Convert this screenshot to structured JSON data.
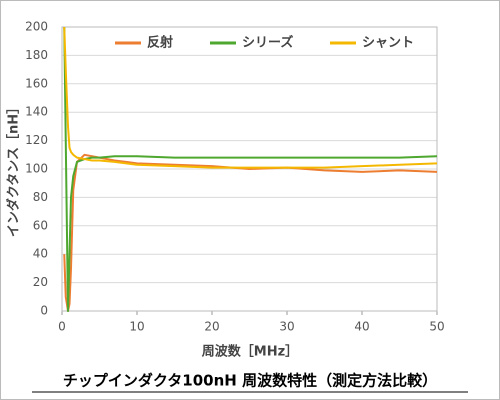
{
  "chart_data": {
    "type": "line",
    "title": "チップインダクタ100nH 周波数特性（測定方法比較）",
    "x_label": "周波数［MHz］",
    "y_label": "インダクタンス［nH］",
    "x": [
      0.3,
      0.5,
      0.8,
      1,
      1.2,
      1.5,
      2,
      3,
      4,
      5,
      7,
      10,
      15,
      20,
      25,
      30,
      35,
      40,
      45,
      50
    ],
    "series": [
      {
        "name": "反射",
        "color": "#ed7d31",
        "values": [
          40,
          10,
          0,
          5,
          30,
          85,
          105,
          110,
          109,
          108,
          106,
          104,
          103,
          102,
          100,
          101,
          99,
          98,
          99,
          98
        ]
      },
      {
        "name": "シリーズ",
        "color": "#4ea72e",
        "values": [
          200,
          120,
          0,
          40,
          80,
          95,
          105,
          107,
          108,
          108,
          109,
          109,
          108,
          108,
          108,
          108,
          108,
          108,
          108,
          109
        ]
      },
      {
        "name": "シャント",
        "color": "#f5b800",
        "values": [
          200,
          170,
          130,
          115,
          112,
          110,
          108,
          107,
          106,
          106,
          105,
          103,
          102,
          101,
          101,
          101,
          101,
          102,
          103,
          104
        ]
      }
    ],
    "xlim": [
      0,
      50
    ],
    "xticks": [
      0,
      10,
      20,
      30,
      40,
      50
    ],
    "ylim": [
      0,
      200
    ],
    "yticks": [
      0,
      20,
      40,
      60,
      80,
      100,
      120,
      140,
      160,
      180,
      200
    ],
    "grid": true,
    "legend": "top"
  }
}
